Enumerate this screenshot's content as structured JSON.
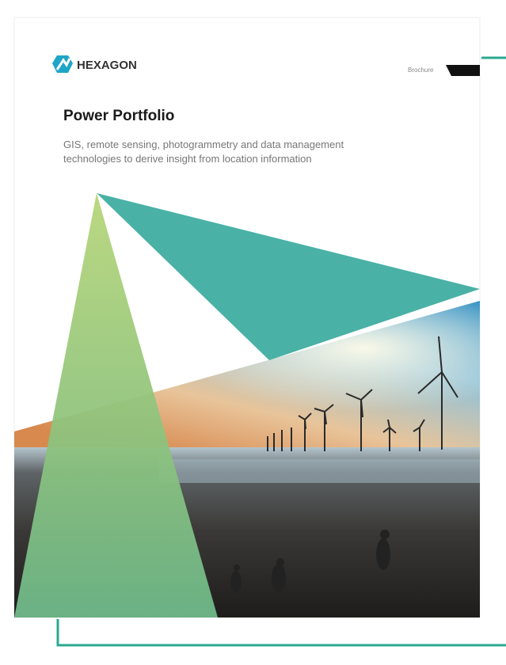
{
  "header": {
    "brand": "HEXAGON",
    "doc_type": "Brochure"
  },
  "title": "Power Portfolio",
  "subtitle_lines": [
    "GIS, remote sensing, photogrammetry and data management",
    "technologies to derive insight from location information"
  ]
}
